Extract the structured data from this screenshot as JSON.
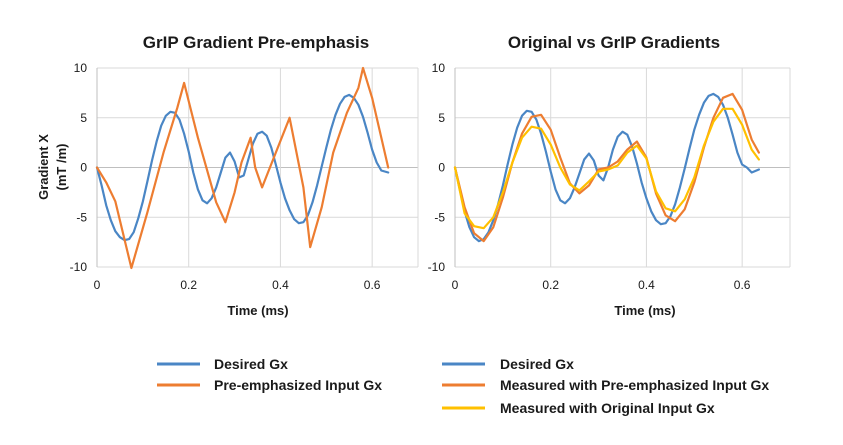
{
  "chart_data": [
    {
      "type": "line",
      "title": "GrIP Gradient Pre-emphasis",
      "xlabel": "Time (ms)",
      "ylabel": "Gradient X (mT /m)",
      "xlim": [
        0,
        0.7
      ],
      "ylim": [
        -10,
        10
      ],
      "xticks": [
        "0",
        "0.2",
        "0.4",
        "0.6"
      ],
      "yticks": [
        "10",
        "5",
        "0",
        "-5",
        "-10"
      ],
      "series": [
        {
          "name": "Desired Gx",
          "color": "#4a86c5",
          "x": [
            0,
            0.01,
            0.02,
            0.03,
            0.04,
            0.05,
            0.06,
            0.07,
            0.08,
            0.09,
            0.1,
            0.11,
            0.12,
            0.13,
            0.14,
            0.15,
            0.16,
            0.17,
            0.18,
            0.19,
            0.2,
            0.21,
            0.22,
            0.23,
            0.24,
            0.25,
            0.26,
            0.27,
            0.28,
            0.29,
            0.3,
            0.31,
            0.32,
            0.33,
            0.34,
            0.35,
            0.36,
            0.37,
            0.38,
            0.39,
            0.4,
            0.41,
            0.42,
            0.43,
            0.44,
            0.45,
            0.46,
            0.47,
            0.48,
            0.49,
            0.5,
            0.51,
            0.52,
            0.53,
            0.54,
            0.55,
            0.56,
            0.57,
            0.58,
            0.59,
            0.6,
            0.61,
            0.62,
            0.635
          ],
          "y": [
            0,
            -1.8,
            -3.8,
            -5.3,
            -6.4,
            -7.0,
            -7.3,
            -7.2,
            -6.5,
            -5.1,
            -3.4,
            -1.4,
            0.7,
            2.6,
            4.2,
            5.2,
            5.6,
            5.5,
            4.8,
            3.4,
            1.6,
            -0.5,
            -2.2,
            -3.3,
            -3.6,
            -3.1,
            -2.0,
            -0.5,
            1.0,
            1.5,
            0.6,
            -1.0,
            -0.8,
            0.8,
            2.4,
            3.4,
            3.6,
            3.2,
            2.0,
            0.3,
            -1.5,
            -3.1,
            -4.3,
            -5.2,
            -5.6,
            -5.5,
            -4.8,
            -3.5,
            -1.8,
            0.1,
            2.0,
            3.8,
            5.3,
            6.4,
            7.1,
            7.3,
            7.0,
            6.3,
            5.1,
            3.5,
            1.8,
            0.5,
            -0.3,
            -0.5
          ]
        },
        {
          "name": "Pre-emphasized Input Gx",
          "color": "#ed7d31",
          "x": [
            0,
            0.02,
            0.04,
            0.075,
            0.11,
            0.145,
            0.175,
            0.19,
            0.22,
            0.26,
            0.28,
            0.3,
            0.315,
            0.335,
            0.345,
            0.36,
            0.39,
            0.42,
            0.45,
            0.465,
            0.49,
            0.515,
            0.545,
            0.57,
            0.58,
            0.6,
            0.635
          ],
          "y": [
            0,
            -1.5,
            -3.4,
            -10.1,
            -4.5,
            1.5,
            6.0,
            8.5,
            3.0,
            -3.5,
            -5.5,
            -2.5,
            0.5,
            3.0,
            0.0,
            -2.0,
            1.5,
            5.0,
            -2.0,
            -8.0,
            -4.0,
            1.5,
            5.5,
            8.0,
            10.0,
            7.0,
            0.0
          ]
        }
      ]
    },
    {
      "type": "line",
      "title": "Original vs GrIP Gradients",
      "xlabel": "Time (ms)",
      "ylabel": "",
      "xlim": [
        0,
        0.7
      ],
      "ylim": [
        -10,
        10
      ],
      "xticks": [
        "0",
        "0.2",
        "0.4",
        "0.6"
      ],
      "yticks": [
        "10",
        "5",
        "0",
        "-5",
        "-10"
      ],
      "series": [
        {
          "name": "Desired Gx",
          "color": "#4a86c5",
          "x": [
            0,
            0.01,
            0.02,
            0.03,
            0.04,
            0.05,
            0.06,
            0.07,
            0.08,
            0.09,
            0.1,
            0.11,
            0.12,
            0.13,
            0.14,
            0.15,
            0.16,
            0.17,
            0.18,
            0.19,
            0.2,
            0.21,
            0.22,
            0.23,
            0.24,
            0.25,
            0.26,
            0.27,
            0.28,
            0.29,
            0.3,
            0.31,
            0.32,
            0.33,
            0.34,
            0.35,
            0.36,
            0.37,
            0.38,
            0.39,
            0.4,
            0.41,
            0.42,
            0.43,
            0.44,
            0.45,
            0.46,
            0.47,
            0.48,
            0.49,
            0.5,
            0.51,
            0.52,
            0.53,
            0.54,
            0.55,
            0.56,
            0.57,
            0.58,
            0.59,
            0.6,
            0.61,
            0.62,
            0.635
          ],
          "y": [
            0,
            -2.2,
            -4.4,
            -6.0,
            -7.0,
            -7.4,
            -7.2,
            -6.5,
            -5.3,
            -3.7,
            -1.8,
            0.3,
            2.3,
            4.0,
            5.2,
            5.7,
            5.6,
            4.8,
            3.4,
            1.6,
            -0.4,
            -2.2,
            -3.3,
            -3.6,
            -3.1,
            -2.0,
            -0.6,
            0.8,
            1.4,
            0.7,
            -0.8,
            -1.3,
            0.0,
            1.8,
            3.1,
            3.6,
            3.3,
            2.1,
            0.4,
            -1.5,
            -3.1,
            -4.4,
            -5.3,
            -5.7,
            -5.6,
            -4.9,
            -3.7,
            -2.0,
            -0.1,
            1.9,
            3.8,
            5.3,
            6.5,
            7.2,
            7.4,
            7.1,
            6.3,
            5.0,
            3.3,
            1.5,
            0.3,
            0.0,
            -0.5,
            -0.2
          ]
        },
        {
          "name": "Measured with Pre-emphasized Input Gx",
          "color": "#ed7d31",
          "x": [
            0,
            0.02,
            0.04,
            0.06,
            0.08,
            0.1,
            0.12,
            0.14,
            0.16,
            0.18,
            0.2,
            0.22,
            0.24,
            0.26,
            0.28,
            0.3,
            0.32,
            0.34,
            0.36,
            0.38,
            0.4,
            0.42,
            0.44,
            0.46,
            0.48,
            0.5,
            0.52,
            0.54,
            0.56,
            0.58,
            0.6,
            0.62,
            0.635
          ],
          "y": [
            0,
            -4.0,
            -6.6,
            -7.4,
            -6.0,
            -3.0,
            0.5,
            3.4,
            5.1,
            5.3,
            3.8,
            1.0,
            -1.6,
            -2.6,
            -1.8,
            -0.2,
            0.0,
            0.6,
            1.8,
            2.6,
            1.0,
            -2.6,
            -4.8,
            -5.4,
            -4.2,
            -1.5,
            2.0,
            5.0,
            7.0,
            7.4,
            5.8,
            2.8,
            1.5
          ]
        },
        {
          "name": "Measured with Original Input Gx",
          "color": "#ffc000",
          "x": [
            0,
            0.02,
            0.04,
            0.06,
            0.08,
            0.1,
            0.12,
            0.14,
            0.16,
            0.18,
            0.2,
            0.22,
            0.24,
            0.26,
            0.28,
            0.3,
            0.32,
            0.34,
            0.36,
            0.38,
            0.4,
            0.42,
            0.44,
            0.46,
            0.48,
            0.5,
            0.52,
            0.54,
            0.56,
            0.58,
            0.6,
            0.62,
            0.635
          ],
          "y": [
            0,
            -4.6,
            -5.9,
            -6.1,
            -5.0,
            -2.5,
            0.5,
            3.0,
            4.1,
            3.9,
            2.3,
            0.0,
            -1.7,
            -2.3,
            -1.4,
            -0.4,
            -0.2,
            0.2,
            1.5,
            2.2,
            0.9,
            -2.4,
            -4.1,
            -4.4,
            -3.2,
            -1.0,
            2.2,
            4.6,
            5.9,
            5.9,
            4.3,
            1.8,
            0.8
          ]
        }
      ]
    }
  ]
}
